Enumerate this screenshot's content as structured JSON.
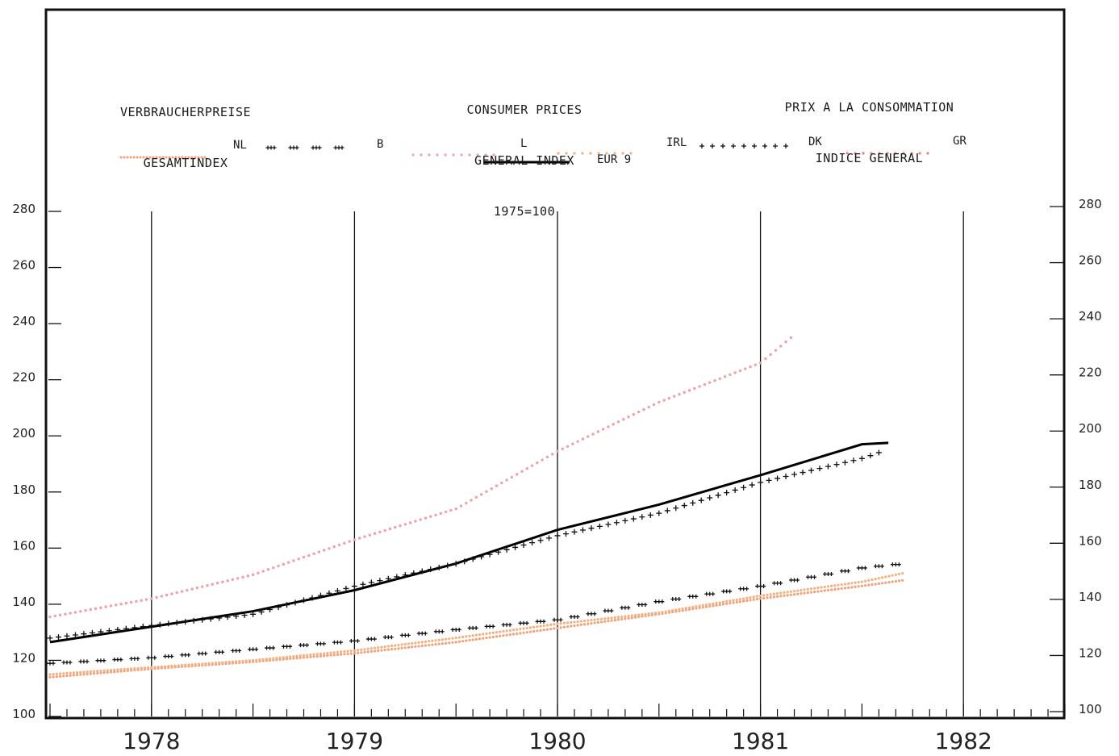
{
  "titles": {
    "de": [
      "VERBRAUCHERPREISE",
      "GESAMTINDEX"
    ],
    "en": [
      "CONSUMER PRICES",
      "GENERAL INDEX",
      "1975=100"
    ],
    "fr": [
      "PRIX A LA CONSOMMATION",
      "INDICE GENERAL"
    ]
  },
  "colors": {
    "frame": "#111111",
    "eur9": "#000000",
    "ireland": "#111111",
    "belgium": "#111111",
    "netherlands": "#f5a079",
    "luxembourg": "#f0a0a6",
    "denmark": "#f3b080",
    "greece": "#f08080"
  },
  "chart_data": {
    "type": "line",
    "x_unit": "year",
    "xlim": [
      1977.5,
      1982.5
    ],
    "ylim": [
      100,
      280
    ],
    "y_ticks": [
      100,
      120,
      140,
      160,
      180,
      200,
      220,
      240,
      260,
      280
    ],
    "x_tick_labels": [
      "1978",
      "1979",
      "1980",
      "1981",
      "1982"
    ],
    "grid": false,
    "legend": [
      {
        "label": "NL",
        "key": "netherlands"
      },
      {
        "label": "B",
        "key": "belgium"
      },
      {
        "label": "L",
        "key": "luxembourg"
      },
      {
        "label": "EUR 9",
        "key": "eur9"
      },
      {
        "label": "IRL",
        "key": "ireland"
      },
      {
        "label": "DK",
        "key": "denmark"
      },
      {
        "label": "GR",
        "key": "greece"
      }
    ],
    "series": [
      {
        "name": "EUR 9",
        "key": "eur9",
        "style": "solid",
        "x": [
          1977.5,
          1978.0,
          1978.5,
          1979.0,
          1979.5,
          1980.0,
          1980.5,
          1981.0,
          1981.5,
          1981.63
        ],
        "y": [
          126.5,
          132.0,
          137.5,
          145.0,
          154.5,
          166.5,
          175.5,
          186.0,
          197.0,
          197.5
        ]
      },
      {
        "name": "IRL",
        "key": "ireland",
        "style": "plus",
        "x": [
          1977.5,
          1978.0,
          1978.5,
          1979.0,
          1979.5,
          1980.0,
          1980.5,
          1981.0,
          1981.5,
          1981.6
        ],
        "y": [
          128.5,
          133.0,
          137.0,
          147.0,
          155.0,
          165.0,
          173.0,
          184.0,
          192.5,
          195.0
        ]
      },
      {
        "name": "B",
        "key": "belgium",
        "style": "plus-dense",
        "x": [
          1977.5,
          1978.0,
          1978.5,
          1979.0,
          1979.5,
          1980.0,
          1980.5,
          1981.0,
          1981.5,
          1981.7
        ],
        "y": [
          119.5,
          121.5,
          124.5,
          127.5,
          131.5,
          135.0,
          141.5,
          147.0,
          153.5,
          155.0
        ]
      },
      {
        "name": "NL",
        "key": "netherlands",
        "style": "dots",
        "x": [
          1977.5,
          1978.0,
          1978.5,
          1979.0,
          1979.5,
          1980.0,
          1980.5,
          1981.0,
          1981.5,
          1981.7
        ],
        "y": [
          114.0,
          117.0,
          119.5,
          122.5,
          126.5,
          131.5,
          136.5,
          142.0,
          146.5,
          148.5
        ]
      },
      {
        "name": "DK",
        "key": "denmark",
        "style": "dots",
        "x": [
          1977.5,
          1978.0,
          1978.5,
          1979.0,
          1979.5,
          1980.0,
          1980.5,
          1981.0,
          1981.5,
          1981.7
        ],
        "y": [
          115.0,
          117.5,
          120.0,
          123.5,
          128.0,
          133.0,
          137.0,
          143.0,
          148.0,
          151.0
        ]
      },
      {
        "name": "L",
        "key": "luxembourg",
        "style": "dots-sparse",
        "x": [
          1977.5,
          1978.0,
          1978.5,
          1979.0,
          1979.5,
          1980.0,
          1980.5,
          1981.0,
          1981.15
        ],
        "y": [
          135.5,
          142.0,
          150.5,
          163.0,
          174.0,
          194.5,
          212.0,
          226.0,
          235.0
        ]
      }
    ]
  }
}
